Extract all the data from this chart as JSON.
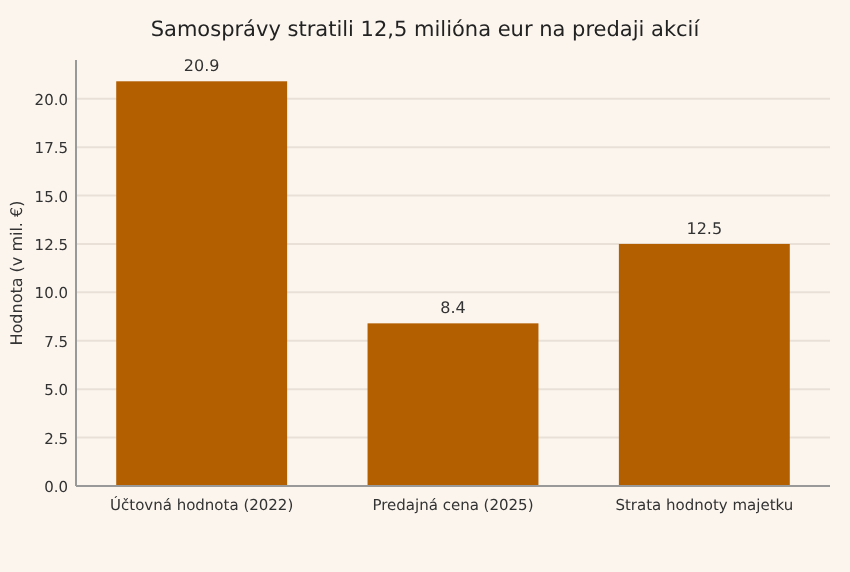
{
  "chart_data": {
    "type": "bar",
    "title": "Samosprávy stratili 12,5 milióna eur na predaji akcií",
    "ylabel": "Hodnota (v mil. €)",
    "categories": [
      "Účtovná hodnota (2022)",
      "Predajná cena (2025)",
      "Strata hodnoty majetku"
    ],
    "values": [
      20.9,
      8.4,
      12.5
    ],
    "color": "#b35f00",
    "ylim": [
      0,
      22
    ],
    "yticks": [
      {
        "value": 0,
        "label": "0.0"
      },
      {
        "value": 2.5,
        "label": "2.5"
      },
      {
        "value": 5,
        "label": "5.0"
      },
      {
        "value": 7.5,
        "label": "7.5"
      },
      {
        "value": 10,
        "label": "10.0"
      },
      {
        "value": 12.5,
        "label": "12.5"
      },
      {
        "value": 15,
        "label": "15.0"
      },
      {
        "value": 17.5,
        "label": "17.5"
      },
      {
        "value": 20,
        "label": "20.0"
      }
    ],
    "grid": "y",
    "data_labels": true
  }
}
